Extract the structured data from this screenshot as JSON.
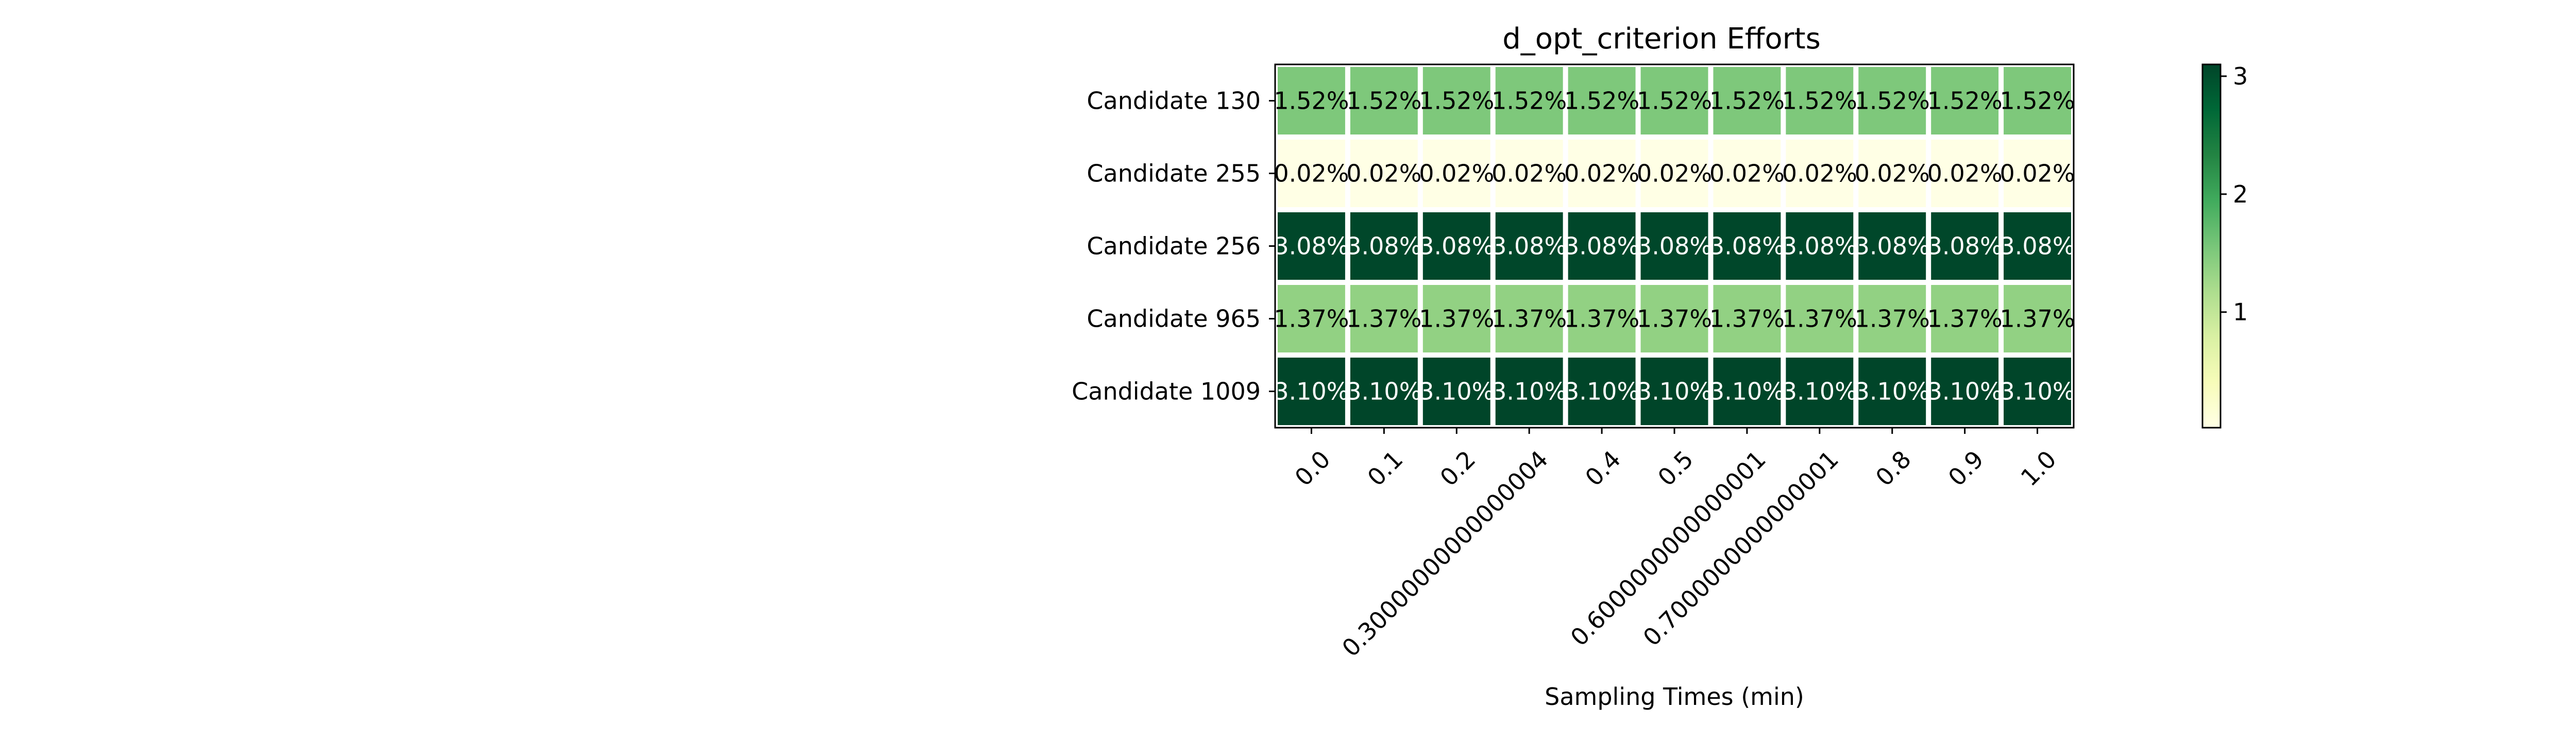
{
  "chart_data": {
    "type": "heatmap",
    "title": "d_opt_criterion Efforts",
    "xlabel": "Sampling Times (min)",
    "ylabel": "",
    "x_tick_labels": [
      "0.0",
      "0.1",
      "0.2",
      "0.30000000000000004",
      "0.4",
      "0.5",
      "0.6000000000000001",
      "0.7000000000000001",
      "0.8",
      "0.9",
      "1.0"
    ],
    "y_tick_labels": [
      "Candidate 130",
      "Candidate 255",
      "Candidate 256",
      "Candidate 965",
      "Candidate 1009"
    ],
    "values": [
      [
        1.52,
        1.52,
        1.52,
        1.52,
        1.52,
        1.52,
        1.52,
        1.52,
        1.52,
        1.52,
        1.52
      ],
      [
        0.02,
        0.02,
        0.02,
        0.02,
        0.02,
        0.02,
        0.02,
        0.02,
        0.02,
        0.02,
        0.02
      ],
      [
        3.08,
        3.08,
        3.08,
        3.08,
        3.08,
        3.08,
        3.08,
        3.08,
        3.08,
        3.08,
        3.08
      ],
      [
        1.37,
        1.37,
        1.37,
        1.37,
        1.37,
        1.37,
        1.37,
        1.37,
        1.37,
        1.37,
        1.37
      ],
      [
        3.1,
        3.1,
        3.1,
        3.1,
        3.1,
        3.1,
        3.1,
        3.1,
        3.1,
        3.1,
        3.1
      ]
    ],
    "cell_labels": [
      [
        "1.52%",
        "1.52%",
        "1.52%",
        "1.52%",
        "1.52%",
        "1.52%",
        "1.52%",
        "1.52%",
        "1.52%",
        "1.52%",
        "1.52%"
      ],
      [
        "0.02%",
        "0.02%",
        "0.02%",
        "0.02%",
        "0.02%",
        "0.02%",
        "0.02%",
        "0.02%",
        "0.02%",
        "0.02%",
        "0.02%"
      ],
      [
        "3.08%",
        "3.08%",
        "3.08%",
        "3.08%",
        "3.08%",
        "3.08%",
        "3.08%",
        "3.08%",
        "3.08%",
        "3.08%",
        "3.08%"
      ],
      [
        "1.37%",
        "1.37%",
        "1.37%",
        "1.37%",
        "1.37%",
        "1.37%",
        "1.37%",
        "1.37%",
        "1.37%",
        "1.37%",
        "1.37%"
      ],
      [
        "3.10%",
        "3.10%",
        "3.10%",
        "3.10%",
        "3.10%",
        "3.10%",
        "3.10%",
        "3.10%",
        "3.10%",
        "3.10%",
        "3.10%"
      ]
    ],
    "colormap": "YlGn",
    "colorbar": {
      "range": [
        0.02,
        3.1
      ],
      "ticks": [
        1,
        2,
        3
      ],
      "tick_labels": [
        "1",
        "2",
        "3"
      ]
    },
    "grid": false
  }
}
